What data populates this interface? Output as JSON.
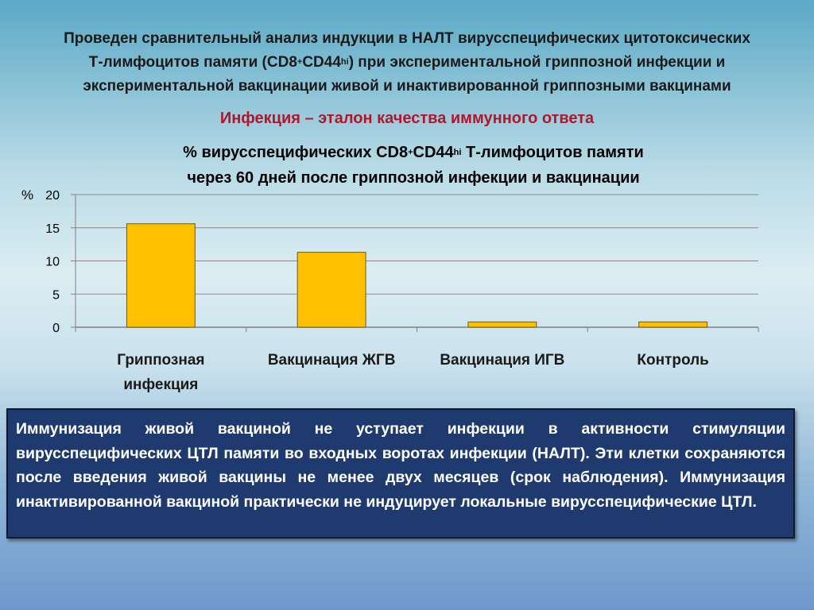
{
  "title": {
    "line1": "Проведен сравнительный анализ индукции в НАЛТ вирусспецифических цитотоксических",
    "line2_a": "Т-лимфоцитов памяти (CD8",
    "line2_sup1": "+",
    "line2_b": "CD44",
    "line2_sup2": "hi",
    "line2_c": ") при экспериментальной гриппозной инфекции и",
    "line3": "экспериментальной вакцинации живой и инактивированной гриппозными вакцинами"
  },
  "highlight": "Инфекция – эталон качества иммунного ответа",
  "chart_data": {
    "type": "bar",
    "title_line1_a": "% вирусспецифических CD8",
    "title_line1_sup1": "+",
    "title_line1_b": "CD44",
    "title_line1_sup2": "hi",
    "title_line1_c": " Т-лимфоцитов памяти",
    "title_line2": "через 60 дней после гриппозной инфекции и вакцинации",
    "ylabel": "%",
    "ylim": [
      0,
      20
    ],
    "yticks": [
      0,
      5,
      10,
      15,
      20
    ],
    "categories": [
      [
        "Гриппозная",
        "инфекция"
      ],
      [
        "Вакцинация ЖГВ"
      ],
      [
        "Вакцинация ИГВ"
      ],
      [
        "Контроль"
      ]
    ],
    "values": [
      15.6,
      11.3,
      0.8,
      0.8
    ],
    "grid": true,
    "colors": {
      "bar": "#ffc000",
      "bar_border": "#6b5a1a",
      "grid": "#8c8c8c",
      "axis": "#808080"
    }
  },
  "callout": {
    "text": "Иммунизация живой вакциной не уступает инфекции в активности стимуляции вирусспецифических ЦТЛ памяти во входных воротах инфекции (НАЛТ). Эти клетки сохраняются после введения живой вакцины не менее двух месяцев (срок наблюдения). Иммунизация инактивированной вакциной практически не индуцирует локальные вирусспецифические ЦТЛ."
  }
}
